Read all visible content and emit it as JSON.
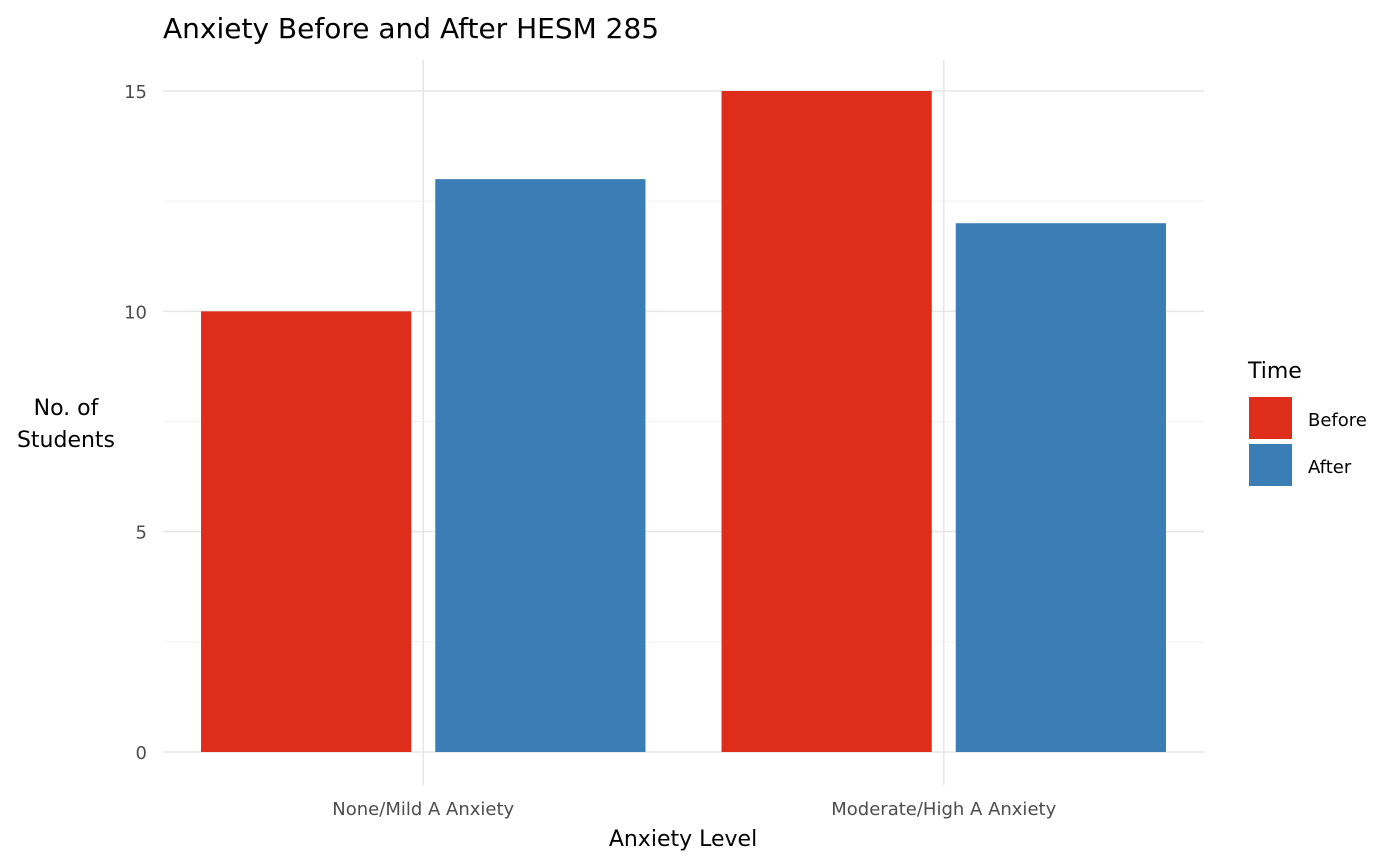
{
  "chart_data": {
    "type": "bar",
    "title": "Anxiety Before and After HESM 285",
    "xlabel": "Anxiety Level",
    "ylabel_lines": [
      "No. of",
      "Students"
    ],
    "categories": [
      "None/Mild A Anxiety",
      "Moderate/High A Anxiety"
    ],
    "series": [
      {
        "name": "Before",
        "values": [
          10,
          15
        ],
        "color": "#de2d1a"
      },
      {
        "name": "After",
        "values": [
          13,
          12
        ],
        "color": "#3a7eb5"
      }
    ],
    "ylim": [
      0,
      15
    ],
    "yticks": [
      0,
      5,
      10,
      15
    ],
    "grid": true,
    "legend": {
      "title": "Time",
      "placement": "right"
    }
  }
}
